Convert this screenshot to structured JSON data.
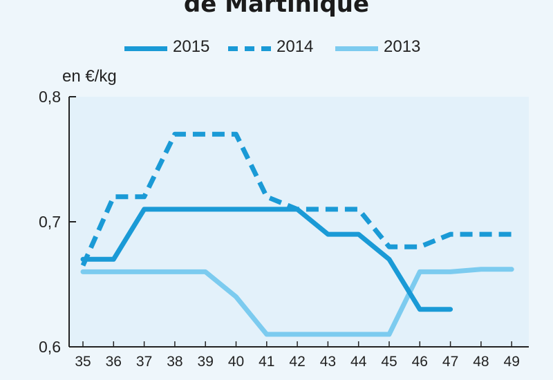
{
  "chart_data": {
    "type": "line",
    "title": "de Martinique",
    "ylabel": "en €/kg",
    "xlabel": "",
    "categories": [
      "35",
      "36",
      "37",
      "38",
      "39",
      "40",
      "41",
      "42",
      "43",
      "44",
      "45",
      "46",
      "47",
      "48",
      "49"
    ],
    "y_ticks": [
      "0,8",
      "0,7",
      "0,6"
    ],
    "ylim": [
      0.6,
      0.8
    ],
    "grid": false,
    "legend_position": "top",
    "series": [
      {
        "name": "2015",
        "style": "solid",
        "color": "#1a9ad6",
        "values": [
          0.67,
          0.67,
          0.71,
          0.71,
          0.71,
          0.71,
          0.71,
          0.71,
          0.69,
          0.69,
          0.67,
          0.63,
          0.63,
          null,
          null
        ]
      },
      {
        "name": "2014",
        "style": "dashed",
        "color": "#1a9ad6",
        "values": [
          0.665,
          0.72,
          0.72,
          0.77,
          0.77,
          0.77,
          0.72,
          0.71,
          0.71,
          0.71,
          0.68,
          0.68,
          0.69,
          0.69,
          0.69
        ]
      },
      {
        "name": "2013",
        "style": "light",
        "color": "#7ccbef",
        "values": [
          0.66,
          0.66,
          0.66,
          0.66,
          0.66,
          0.64,
          0.61,
          0.61,
          0.61,
          0.61,
          0.61,
          0.66,
          0.66,
          0.662,
          0.662
        ]
      }
    ]
  }
}
